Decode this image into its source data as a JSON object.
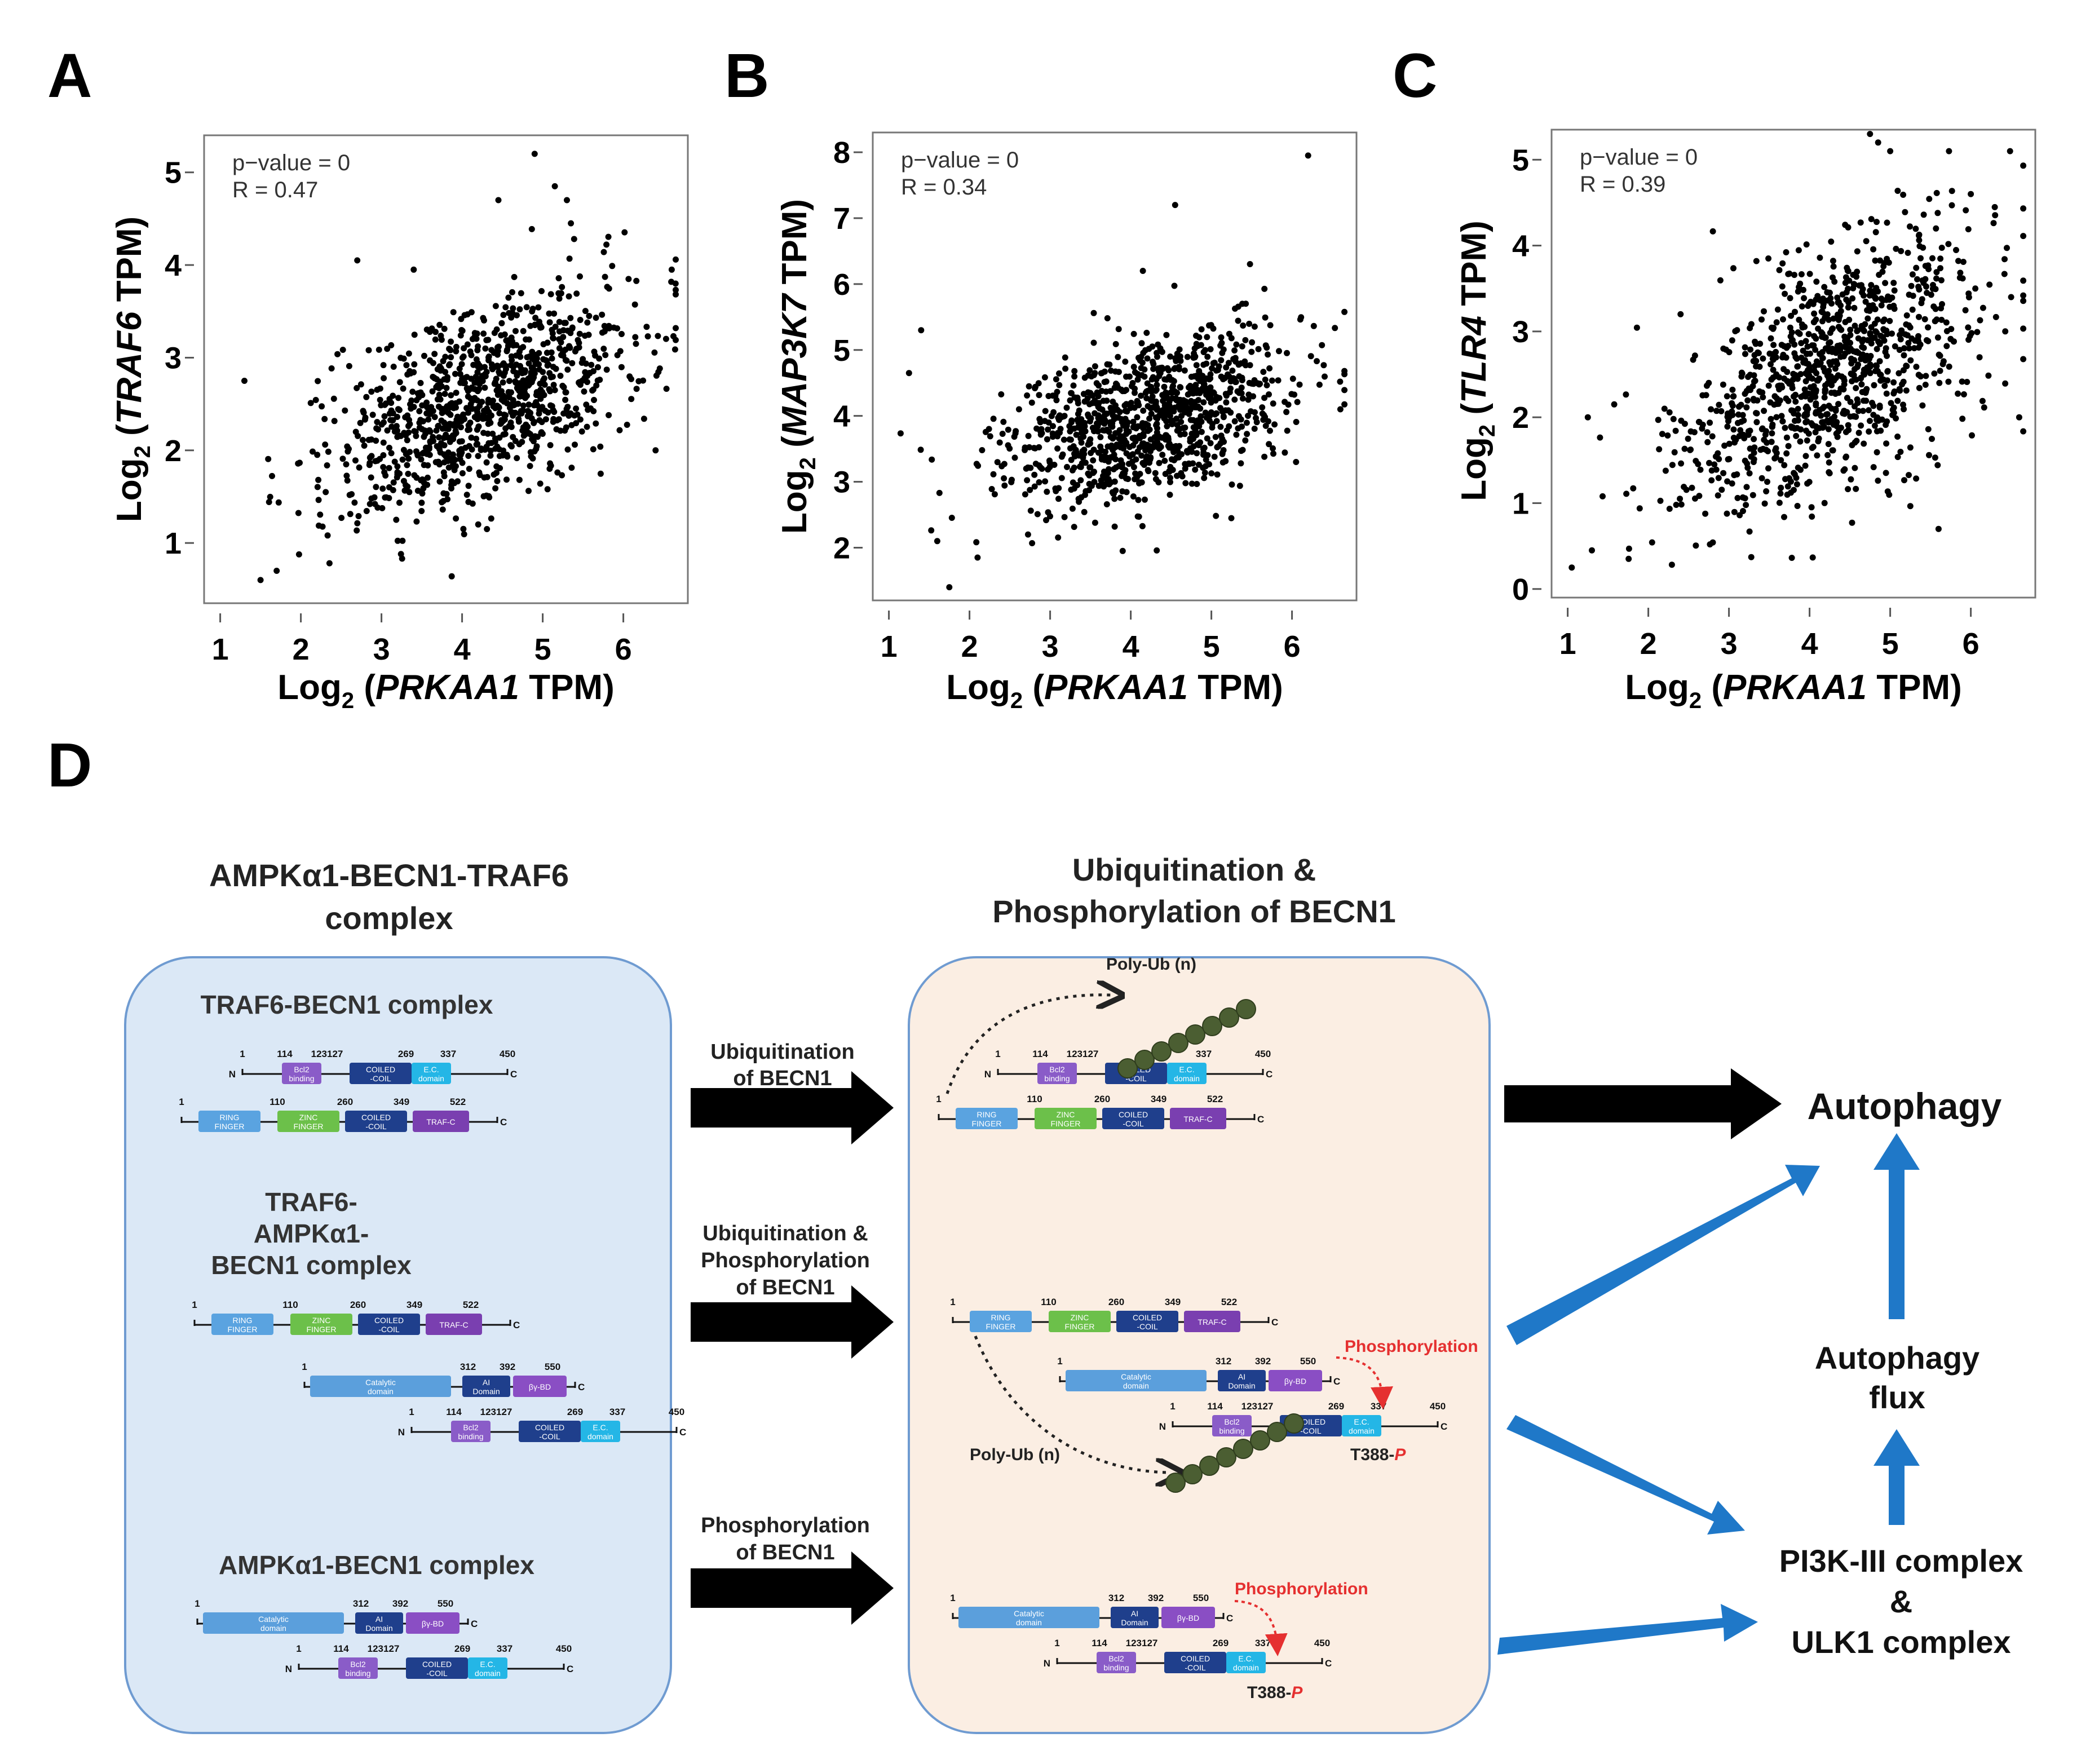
{
  "chart_data": [
    {
      "type": "scatter",
      "panel": "A",
      "x_gene": "PRKAA1",
      "y_gene": "TRAF6",
      "xlabel_prefix": "Log",
      "xlabel_sub": "2",
      "xlabel_open": " (",
      "xlabel_close": " TPM)",
      "ylabel_prefix": "Log",
      "ylabel_sub": "2",
      "ylabel_open": " (",
      "ylabel_close": " TPM)",
      "pvalue": "p−value = 0",
      "r": "R = 0.47",
      "xticks": [
        1,
        2,
        3,
        4,
        5,
        6
      ],
      "yticks": [
        1,
        2,
        3,
        4,
        5
      ],
      "xlim": [
        0.8,
        6.8
      ],
      "ylim": [
        0.35,
        5.4
      ],
      "trend": {
        "slope": 0.36,
        "intercept": 1.0,
        "sd": 0.52
      },
      "outliers": [
        [
          1.5,
          0.6
        ],
        [
          1.7,
          0.7
        ],
        [
          1.3,
          2.75
        ],
        [
          2.7,
          4.05
        ],
        [
          3.4,
          3.95
        ],
        [
          4.45,
          4.7
        ],
        [
          4.9,
          5.2
        ],
        [
          5.15,
          4.85
        ],
        [
          5.3,
          4.7
        ],
        [
          5.35,
          4.45
        ],
        [
          6.4,
          2.0
        ],
        [
          6.6,
          3.95
        ],
        [
          4.2,
          1.2
        ]
      ]
    },
    {
      "type": "scatter",
      "panel": "B",
      "x_gene": "PRKAA1",
      "y_gene": "MAP3K7",
      "xlabel_prefix": "Log",
      "xlabel_sub": "2",
      "xlabel_open": " (",
      "xlabel_close": " TPM)",
      "ylabel_prefix": "Log",
      "ylabel_sub": "2",
      "ylabel_open": " (",
      "ylabel_close": " TPM)",
      "pvalue": "p−value = 0",
      "r": "R = 0.34",
      "xticks": [
        1,
        2,
        3,
        4,
        5,
        6
      ],
      "yticks": [
        2,
        3,
        4,
        5,
        6,
        7,
        8
      ],
      "xlim": [
        0.8,
        6.8
      ],
      "ylim": [
        1.2,
        8.3
      ],
      "trend": {
        "slope": 0.3,
        "intercept": 2.7,
        "sd": 0.58
      },
      "outliers": [
        [
          6.2,
          7.95
        ],
        [
          4.55,
          7.2
        ],
        [
          4.15,
          6.2
        ],
        [
          1.4,
          5.3
        ],
        [
          1.25,
          4.65
        ],
        [
          1.75,
          1.4
        ],
        [
          1.6,
          2.1
        ],
        [
          2.1,
          1.85
        ],
        [
          3.9,
          1.95
        ],
        [
          6.05,
          3.3
        ],
        [
          6.6,
          4.1
        ]
      ]
    },
    {
      "type": "scatter",
      "panel": "C",
      "x_gene": "PRKAA1",
      "y_gene": "TLR4",
      "xlabel_prefix": "Log",
      "xlabel_sub": "2",
      "xlabel_open": " (",
      "xlabel_close": " TPM)",
      "ylabel_prefix": "Log",
      "ylabel_sub": "2",
      "ylabel_open": " (",
      "ylabel_close": " TPM)",
      "pvalue": "p−value = 0",
      "r": "R = 0.39",
      "xticks": [
        1,
        2,
        3,
        4,
        5,
        6
      ],
      "yticks": [
        0,
        1,
        2,
        3,
        4,
        5
      ],
      "xlim": [
        0.8,
        6.8
      ],
      "ylim": [
        -0.1,
        5.35
      ],
      "trend": {
        "slope": 0.5,
        "intercept": 0.4,
        "sd": 0.72
      },
      "outliers": [
        [
          4.75,
          5.3
        ],
        [
          4.85,
          5.2
        ],
        [
          5.0,
          5.1
        ],
        [
          6.0,
          4.6
        ],
        [
          6.5,
          3.4
        ],
        [
          1.05,
          0.25
        ],
        [
          1.3,
          0.45
        ],
        [
          1.25,
          2.0
        ],
        [
          6.6,
          2.0
        ],
        [
          5.6,
          0.7
        ],
        [
          2.4,
          3.2
        ]
      ]
    }
  ],
  "panel_letters": [
    "A",
    "B",
    "C",
    "D"
  ],
  "diagram": {
    "left_title_1": "AMPKα1-BECN1-TRAF6",
    "left_title_2": "complex",
    "mid_title_1": "Ubiquitination &",
    "mid_title_2": "Phosphorylation of BECN1",
    "sub_traf6_becn1": "TRAF6-BECN1 complex",
    "sub_ternary_1": "TRAF6-",
    "sub_ternary_2": "AMPKα1-",
    "sub_ternary_3": "BECN1 complex",
    "sub_ampk_becn1": "AMPKα1-BECN1 complex",
    "arrow1_1": "Ubiquitination",
    "arrow1_2": "of BECN1",
    "arrow2_1": "Ubiquitination &",
    "arrow2_2": "Phosphorylation",
    "arrow2_3": "of BECN1",
    "arrow3_1": "Phosphorylation",
    "arrow3_2": "of BECN1",
    "autophagy": "Autophagy",
    "flux_1": "Autophagy",
    "flux_2": "flux",
    "pi3k_1": "PI3K-III complex",
    "pi3k_2": "&",
    "pi3k_3": "ULK1 complex",
    "polyub": "Poly-Ub (n)",
    "phospho": "Phosphorylation",
    "t388": "T388-",
    "t388_p": "P"
  },
  "proteins": {
    "becn1": {
      "n": "N",
      "c": "C",
      "nums": [
        "1",
        "114",
        "123127",
        "269",
        "337",
        "450"
      ],
      "domains": [
        "Bcl2 binding",
        "COILED -COIL",
        "E.C. domain"
      ]
    },
    "traf6": {
      "nums": [
        "1",
        "110",
        "260",
        "349",
        "522"
      ],
      "domains": [
        "RING FINGER",
        "ZINC FINGER",
        "COILED -COIL",
        "TRAF-C"
      ],
      "c": "C"
    },
    "ampk": {
      "nums": [
        "1",
        "312",
        "392",
        "550"
      ],
      "domains": [
        "Catalytic domain",
        "AI Domain",
        "βγ-BD"
      ],
      "c": "C"
    }
  },
  "colors": {
    "left_box": "#dbe8f6",
    "mid_box": "#fbeee3",
    "blue_arrow": "#1f78c8",
    "black_arrow": "#000000",
    "ub_bead": "#4b5e32",
    "red": "#e53030"
  }
}
